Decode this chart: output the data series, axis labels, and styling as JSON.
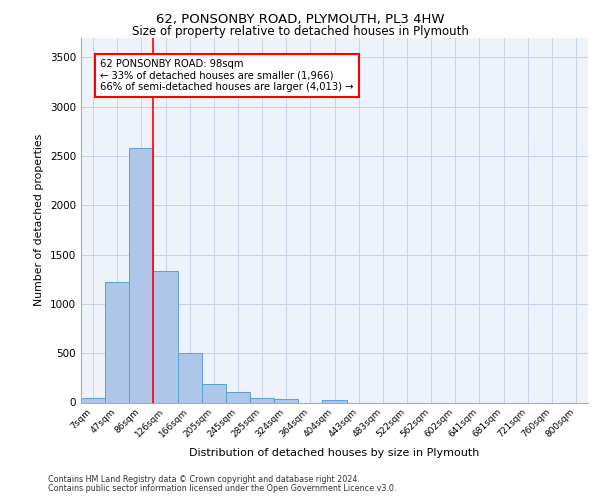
{
  "title1": "62, PONSONBY ROAD, PLYMOUTH, PL3 4HW",
  "title2": "Size of property relative to detached houses in Plymouth",
  "xlabel": "Distribution of detached houses by size in Plymouth",
  "ylabel": "Number of detached properties",
  "bar_labels": [
    "7sqm",
    "47sqm",
    "86sqm",
    "126sqm",
    "166sqm",
    "205sqm",
    "245sqm",
    "285sqm",
    "324sqm",
    "364sqm",
    "404sqm",
    "443sqm",
    "483sqm",
    "522sqm",
    "562sqm",
    "602sqm",
    "641sqm",
    "681sqm",
    "721sqm",
    "760sqm",
    "800sqm"
  ],
  "bar_values": [
    50,
    1220,
    2580,
    1330,
    500,
    190,
    105,
    50,
    40,
    0,
    30,
    0,
    0,
    0,
    0,
    0,
    0,
    0,
    0,
    0,
    0
  ],
  "bar_color": "#aec6e8",
  "bar_edge_color": "#5a9fd4",
  "vline_x": 2.5,
  "vline_color": "red",
  "ylim": [
    0,
    3700
  ],
  "yticks": [
    0,
    500,
    1000,
    1500,
    2000,
    2500,
    3000,
    3500
  ],
  "annotation_text": "62 PONSONBY ROAD: 98sqm\n← 33% of detached houses are smaller (1,966)\n66% of semi-detached houses are larger (4,013) →",
  "annotation_box_color": "white",
  "annotation_box_edge_color": "red",
  "footnote1": "Contains HM Land Registry data © Crown copyright and database right 2024.",
  "footnote2": "Contains public sector information licensed under the Open Government Licence v3.0.",
  "bg_color": "#eef3fb",
  "grid_color": "#c8d4e8"
}
